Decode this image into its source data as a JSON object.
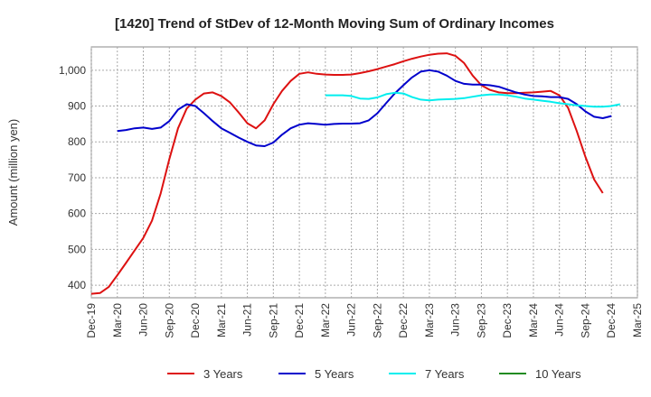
{
  "chart_data": {
    "type": "line",
    "title": "[1420]  Trend of StDev of 12-Month Moving Sum of Ordinary Incomes",
    "ylabel": "Amount (million yen)",
    "xlabel": "",
    "ylim": [
      365,
      1065
    ],
    "yticks": [
      400,
      500,
      600,
      700,
      800,
      900,
      1000
    ],
    "ytick_labels": [
      "400",
      "500",
      "600",
      "700",
      "800",
      "900",
      "1,000"
    ],
    "xtick_labels": [
      "Dec-19",
      "Mar-20",
      "Jun-20",
      "Sep-20",
      "Dec-20",
      "Mar-21",
      "Jun-21",
      "Sep-21",
      "Dec-21",
      "Mar-22",
      "Jun-22",
      "Sep-22",
      "Dec-22",
      "Mar-23",
      "Jun-23",
      "Sep-23",
      "Dec-23",
      "Mar-24",
      "Jun-24",
      "Sep-24",
      "Dec-24",
      "Mar-25"
    ],
    "x_start": "Dec-19",
    "x_end": "Mar-25",
    "grid": true,
    "legend_position": "bottom",
    "series": [
      {
        "name": "3 Years",
        "color": "#dd1111",
        "start": "Dec-19",
        "values": [
          376,
          378,
          395,
          428,
          462,
          497,
          532,
          580,
          656,
          752,
          838,
          893,
          918,
          935,
          938,
          928,
          910,
          882,
          852,
          838,
          860,
          905,
          942,
          970,
          990,
          994,
          990,
          988,
          987,
          987,
          988,
          992,
          997,
          1003,
          1010,
          1017,
          1025,
          1032,
          1038,
          1043,
          1046,
          1047,
          1040,
          1020,
          985,
          958,
          945,
          938,
          936,
          936,
          937,
          938,
          940,
          942,
          930,
          895,
          830,
          758,
          695,
          657
        ]
      },
      {
        "name": "5 Years",
        "color": "#0000cc",
        "start": "Mar-20",
        "values": [
          830,
          833,
          838,
          840,
          836,
          840,
          858,
          890,
          905,
          900,
          880,
          858,
          838,
          825,
          812,
          800,
          790,
          788,
          798,
          820,
          838,
          848,
          852,
          850,
          848,
          850,
          851,
          851,
          852,
          860,
          880,
          908,
          935,
          958,
          980,
          996,
          1000,
          996,
          985,
          970,
          962,
          960,
          960,
          958,
          954,
          946,
          938,
          932,
          928,
          927,
          925,
          925,
          920,
          905,
          885,
          870,
          866,
          872
        ]
      },
      {
        "name": "7 Years",
        "color": "#00eeee",
        "start": "Mar-22",
        "values": [
          930,
          930,
          930,
          928,
          921,
          920,
          924,
          933,
          937,
          935,
          925,
          918,
          916,
          918,
          919,
          920,
          922,
          926,
          930,
          932,
          932,
          930,
          926,
          921,
          918,
          915,
          912,
          908,
          905,
          902,
          900,
          898,
          898,
          900,
          905
        ]
      },
      {
        "name": "10 Years",
        "color": "#228b22",
        "start": "",
        "values": []
      }
    ]
  }
}
